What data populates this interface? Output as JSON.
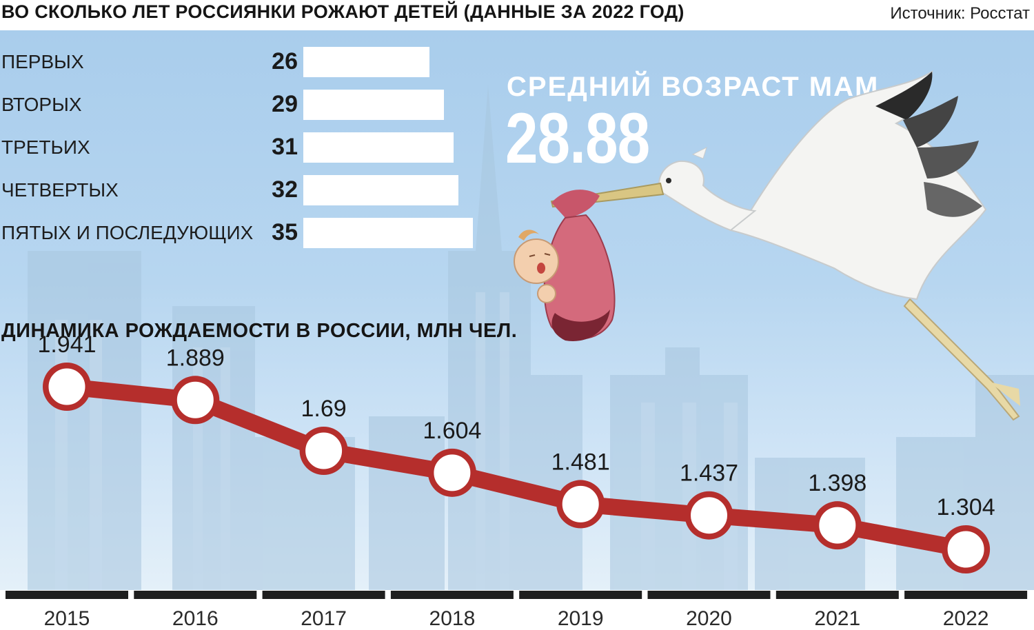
{
  "title": "ВО СКОЛЬКО ЛЕТ РОССИЯНКИ РОЖАЮТ ДЕТЕЙ (ДАННЫЕ ЗА 2022 ГОД)",
  "source": "Источник: Росстат",
  "average": {
    "label": "СРЕДНИЙ ВОЗРАСТ МАМ",
    "value": "28.88"
  },
  "colors": {
    "line": "#b52e2c",
    "marker_fill": "#ffffff",
    "axis_bar": "#1f1f1f",
    "sky": "#b7d6f0",
    "city": "#9fbdd6"
  },
  "chart_data": [
    {
      "type": "bar",
      "orientation": "horizontal",
      "categories": [
        "ПЕРВЫХ",
        "ВТОРЫХ",
        "ТРЕТЬИХ",
        "ЧЕТВЕРТЫХ",
        "ПЯТЫХ И ПОСЛЕДУЮЩИХ"
      ],
      "values": [
        26,
        29,
        31,
        32,
        35
      ],
      "data_labels": [
        "26",
        "29",
        "31",
        "32",
        "35"
      ]
    },
    {
      "type": "line",
      "title": "ДИНАМИКА РОЖДАЕМОСТИ В РОССИИ,  МЛН ЧЕЛ.",
      "x": [
        "2015",
        "2016",
        "2017",
        "2018",
        "2019",
        "2020",
        "2021",
        "2022"
      ],
      "y": [
        1.941,
        1.889,
        1.69,
        1.604,
        1.481,
        1.437,
        1.398,
        1.304
      ],
      "data_labels": [
        "1.941",
        "1.889",
        "1.69",
        "1.604",
        "1.481",
        "1.437",
        "1.398",
        "1.304"
      ],
      "grid": false,
      "legend": "none"
    }
  ]
}
